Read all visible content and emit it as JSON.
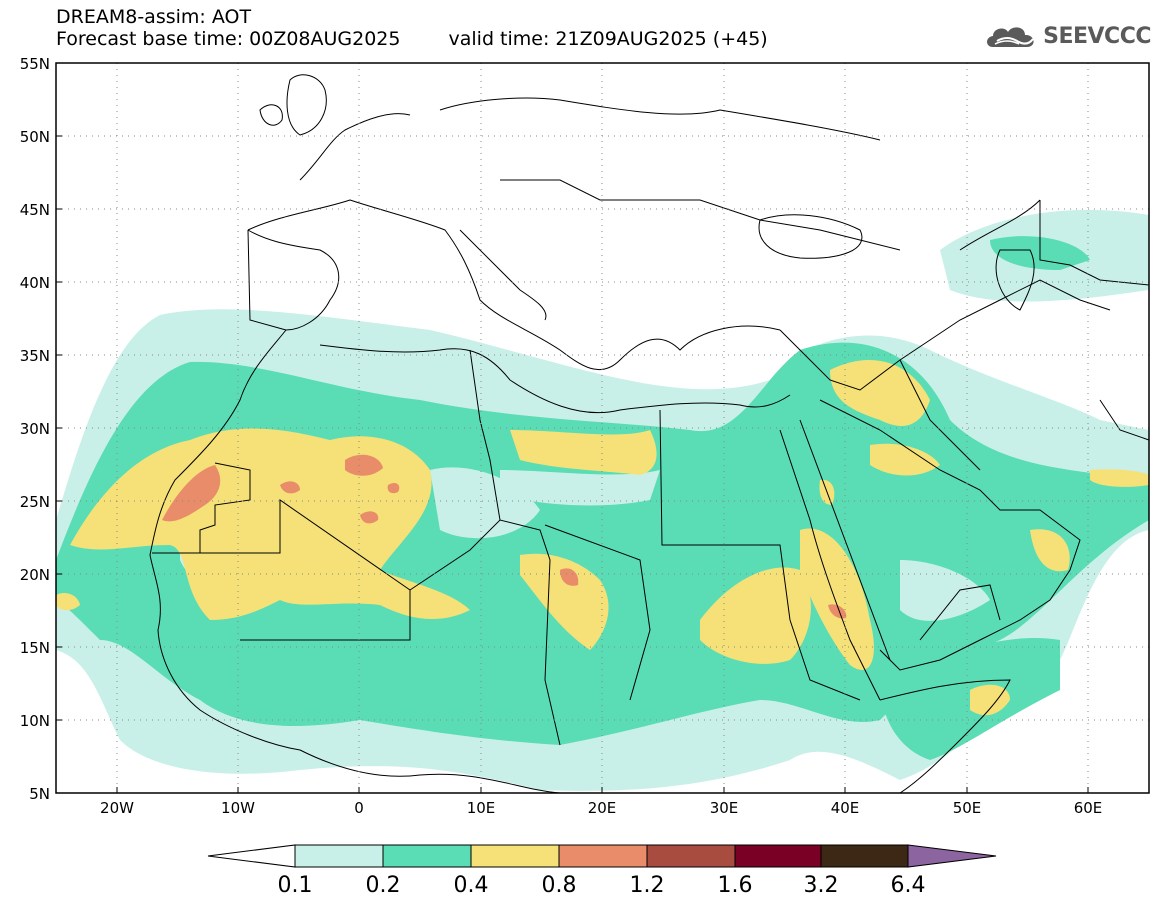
{
  "title": {
    "line1": "DREAM8-assim: AOT",
    "base_time": "Forecast base time: 00Z08AUG2025",
    "valid_time": "valid time: 21Z09AUG2025 (+45)"
  },
  "logo": {
    "text": "SEEVCCC",
    "icon": "cloud-logo-icon"
  },
  "axes": {
    "lat_labels": [
      "55N",
      "50N",
      "45N",
      "40N",
      "35N",
      "30N",
      "25N",
      "20N",
      "15N",
      "10N",
      "5N"
    ],
    "lon_labels": [
      "20W",
      "10W",
      "0",
      "10E",
      "20E",
      "30E",
      "40E",
      "50E",
      "60E"
    ],
    "lat_range": [
      5,
      55
    ],
    "lon_range": [
      -25,
      65
    ],
    "grid": "dotted"
  },
  "colorbar": {
    "labels": [
      "0.1",
      "0.2",
      "0.4",
      "0.8",
      "1.2",
      "1.6",
      "3.2",
      "6.4"
    ],
    "colors": [
      "#ffffff",
      "#c8f0e8",
      "#5adcb4",
      "#f5e178",
      "#e88c6a",
      "#a84c40",
      "#7a0026",
      "#3c2814",
      "#8c64a0"
    ],
    "placement": "bottom"
  },
  "colors": {
    "land_outline": "#000000",
    "background": "#ffffff"
  }
}
